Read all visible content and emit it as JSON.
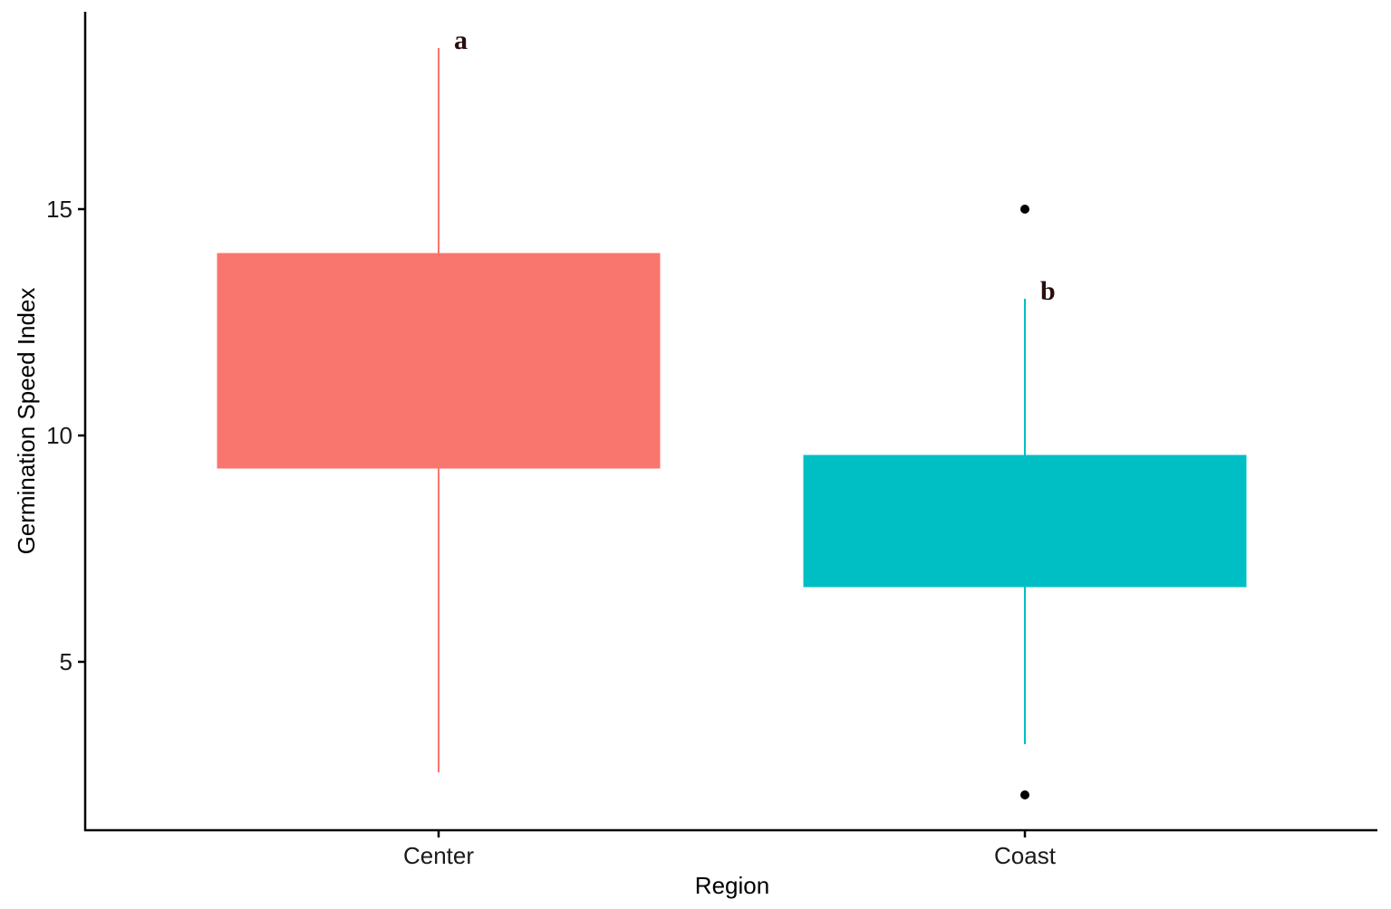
{
  "chart_data": {
    "type": "boxplot",
    "title": "",
    "xlabel": "Region",
    "ylabel": "Germination Speed Index",
    "categories": [
      "Center",
      "Coast"
    ],
    "y_ticks": [
      5,
      10,
      15
    ],
    "ylim": [
      1.3,
      19.3
    ],
    "grid": false,
    "legend": "none",
    "series": [
      {
        "name": "Center",
        "color": "#F8766D",
        "whisker_low": 2.56,
        "q1": 9.28,
        "median": null,
        "q3": 14.02,
        "whisker_high": 18.56,
        "outliers": [],
        "significance_letter": "a"
      },
      {
        "name": "Coast",
        "color": "#00BFC4",
        "whisker_low": 3.18,
        "q1": 6.66,
        "median": null,
        "q3": 9.56,
        "whisker_high": 13.02,
        "outliers": [
          15.0,
          2.06
        ],
        "significance_letter": "b"
      }
    ]
  }
}
